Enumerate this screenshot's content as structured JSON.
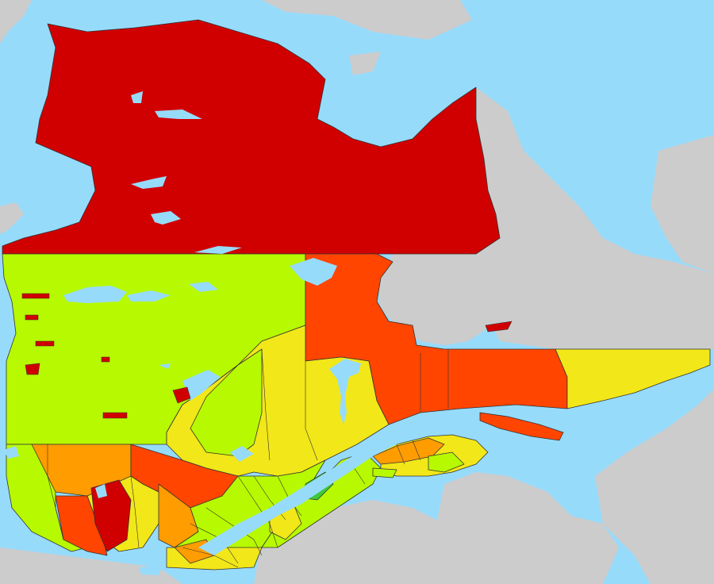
{
  "map": {
    "colors": {
      "water": "#97dbfb",
      "neighbouring_land": "#cccccc",
      "red": "#d10000",
      "red_orange": "#ff4500",
      "orange": "#ff9c00",
      "yellow": "#f2e718",
      "yellow_green": "#b7f900",
      "green": "#3ec83c",
      "border": "#333333"
    },
    "regions": [
      {
        "name": "north",
        "color_key": "red"
      },
      {
        "name": "middle-west",
        "color_key": "yellow_green"
      },
      {
        "name": "middle-east",
        "color_key": "red_orange"
      },
      {
        "name": "lower-north-shore",
        "color_key": "yellow"
      },
      {
        "name": "anticosti",
        "color_key": "red_orange"
      },
      {
        "name": "south-central",
        "color_key": "yellow"
      },
      {
        "name": "abitibi",
        "color_key": "yellow_green"
      },
      {
        "name": "southwest-orange",
        "color_key": "orange"
      },
      {
        "name": "southwest-red-orange",
        "color_key": "red_orange"
      },
      {
        "name": "southwest-red",
        "color_key": "red"
      },
      {
        "name": "gaspe",
        "color_key": "yellow"
      }
    ]
  }
}
